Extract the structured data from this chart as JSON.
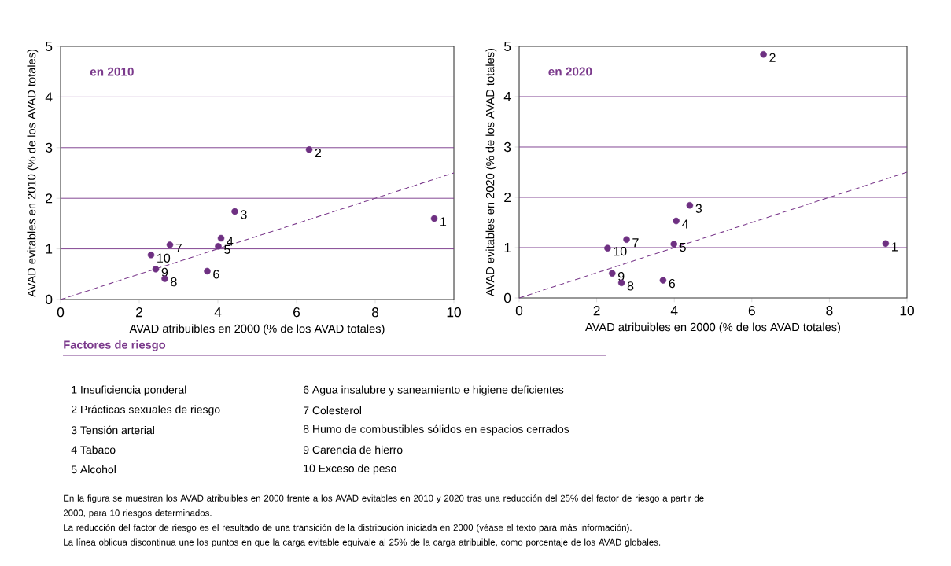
{
  "chart_data": [
    {
      "type": "scatter",
      "title": "en 2010",
      "xlabel": "AVAD atribuibles en 2000 (% de los AVAD totales)",
      "ylabel": "AVAD evitables en 2010 (% de los AVAD totales)",
      "xlim": [
        0,
        10
      ],
      "ylim": [
        0,
        5
      ],
      "xticks": [
        0,
        2,
        4,
        6,
        8,
        10
      ],
      "yticks": [
        0,
        1,
        2,
        3,
        4,
        5
      ],
      "grid": "y",
      "series": [
        {
          "type": "scatter",
          "marker": "circle",
          "color": "#6e3082",
          "x": [
            9.5,
            6.32,
            4.43,
            4.08,
            4.01,
            3.73,
            2.78,
            2.65,
            2.42,
            2.3
          ],
          "values": [
            1.6,
            2.96,
            1.74,
            1.21,
            1.05,
            0.56,
            1.08,
            0.41,
            0.6,
            0.88
          ]
        },
        {
          "type": "line",
          "color": "#7b3a8c",
          "line_style": "dashed",
          "x": [
            0,
            10
          ],
          "values": [
            0,
            2.5
          ]
        }
      ],
      "annotations": [
        {
          "text": "1",
          "x": 9.5,
          "y": 1.6
        },
        {
          "text": "2",
          "x": 6.32,
          "y": 2.96
        },
        {
          "text": "3",
          "x": 4.43,
          "y": 1.74
        },
        {
          "text": "4",
          "x": 4.08,
          "y": 1.21
        },
        {
          "text": "5",
          "x": 4.01,
          "y": 1.05
        },
        {
          "text": "6",
          "x": 3.73,
          "y": 0.56
        },
        {
          "text": "7",
          "x": 2.78,
          "y": 1.08
        },
        {
          "text": "8",
          "x": 2.65,
          "y": 0.41
        },
        {
          "text": "9",
          "x": 2.42,
          "y": 0.6
        },
        {
          "text": "10",
          "x": 2.3,
          "y": 0.88
        }
      ]
    },
    {
      "type": "scatter",
      "title": "en 2020",
      "xlabel": "AVAD atribuibles en 2000 (% de los AVAD totales)",
      "ylabel": "AVAD evitables en 2020 (% de los AVAD totales)",
      "xlim": [
        0,
        10
      ],
      "ylim": [
        0,
        5
      ],
      "xticks": [
        0,
        2,
        4,
        6,
        8,
        10
      ],
      "yticks": [
        0,
        1,
        2,
        3,
        4,
        5
      ],
      "grid": "y",
      "series": [
        {
          "type": "scatter",
          "marker": "circle",
          "color": "#6e3082",
          "x": [
            9.45,
            6.3,
            4.4,
            4.05,
            3.99,
            3.71,
            2.77,
            2.64,
            2.4,
            2.28
          ],
          "values": [
            1.08,
            4.84,
            1.84,
            1.53,
            1.07,
            0.35,
            1.16,
            0.3,
            0.49,
            0.99
          ]
        },
        {
          "type": "line",
          "color": "#7b3a8c",
          "line_style": "dashed",
          "x": [
            0,
            10
          ],
          "values": [
            0,
            2.5
          ]
        }
      ],
      "annotations": [
        {
          "text": "1",
          "x": 9.45,
          "y": 1.08
        },
        {
          "text": "2",
          "x": 6.3,
          "y": 4.84
        },
        {
          "text": "3",
          "x": 4.4,
          "y": 1.84
        },
        {
          "text": "4",
          "x": 4.05,
          "y": 1.53
        },
        {
          "text": "5",
          "x": 3.99,
          "y": 1.07
        },
        {
          "text": "6",
          "x": 3.71,
          "y": 0.35
        },
        {
          "text": "7",
          "x": 2.77,
          "y": 1.16
        },
        {
          "text": "8",
          "x": 2.64,
          "y": 0.3
        },
        {
          "text": "9",
          "x": 2.4,
          "y": 0.49
        },
        {
          "text": "10",
          "x": 2.28,
          "y": 0.99
        }
      ]
    },
    {
      "type": "other",
      "title": "Factores de riesgo",
      "annotations": [
        "1 Insuficiencia ponderal",
        "2 Prácticas sexuales de riesgo",
        "3 Tensión arterial",
        "4 Tabaco",
        "5 Alcohol",
        "6 Agua insalubre y saneamiento e higiene deficientes",
        "7 Colesterol",
        "8 Humo de combustibles sólidos en espacios cerrados",
        "9 Carencia de hierro",
        "10 Exceso de peso",
        "En la figura se muestran los AVAD atribuibles en 2000 frente a los AVAD evitables en 2010 y 2020 tras una reducción del 25% del factor de riesgo a partir de 2000, para 10 riesgos determinados.",
        "La reducción del factor de riesgo es el resultado de una transición de la distribución iniciada en 2000 (véase el texto para más información).",
        "La línea oblicua discontinua une los puntos en que la carga evitable equivale al 25% de la carga atribuible, como porcentaje de los AVAD globales."
      ]
    }
  ]
}
